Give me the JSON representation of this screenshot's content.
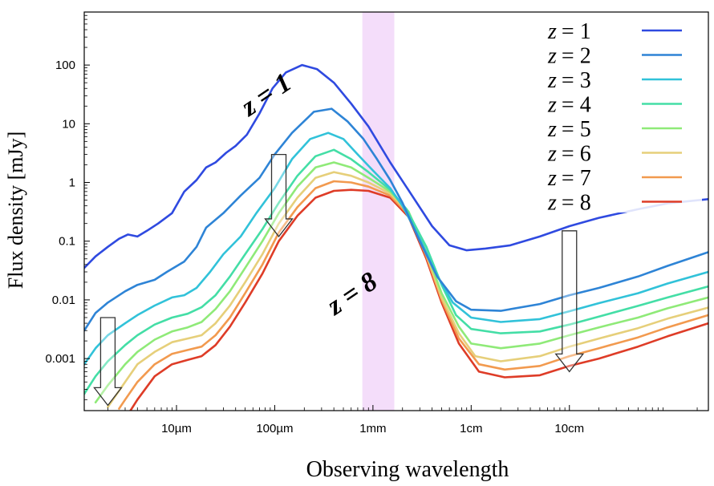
{
  "chart_data": {
    "type": "line",
    "title": "",
    "xlabel": "Observing wavelength",
    "ylabel": "Flux density [mJy]",
    "x_unit": "micrometre",
    "x_scale": "log",
    "y_scale": "log",
    "xlim": [
      1.15,
      2600000
    ],
    "ylim": [
      0.00013,
      800
    ],
    "x_ticks": [
      {
        "value": 10,
        "label": "10µm"
      },
      {
        "value": 100,
        "label": "100µm"
      },
      {
        "value": 1000,
        "label": "1mm"
      },
      {
        "value": 10000,
        "label": "1cm"
      },
      {
        "value": 100000,
        "label": "10cm"
      }
    ],
    "y_ticks": [
      {
        "value": 0.001,
        "label": "0.001"
      },
      {
        "value": 0.01,
        "label": "0.01"
      },
      {
        "value": 0.1,
        "label": "0.1"
      },
      {
        "value": 1,
        "label": "1"
      },
      {
        "value": 10,
        "label": "10"
      },
      {
        "value": 100,
        "label": "100"
      }
    ],
    "highlight_band": {
      "x_range": [
        780,
        1650
      ],
      "color": "#f4ddfa"
    },
    "grid": false,
    "legend_position": "top-right",
    "annotations": [
      {
        "text": "z = 1",
        "near": "upper curve, left of peak"
      },
      {
        "text": "z = 8",
        "near": "lower curve, below peak"
      }
    ],
    "arrows": [
      {
        "x": 2,
        "from": 0.005,
        "to": 0.00016
      },
      {
        "x": 110,
        "from": 3,
        "to": 0.12
      },
      {
        "x": 100000,
        "from": 0.15,
        "to": 0.0006
      }
    ],
    "series": [
      {
        "name": "z = 1",
        "z_label": "z",
        "eq": "= 1",
        "color": "#2f4ae0",
        "x": [
          1.15,
          1.5,
          2,
          2.6,
          3.2,
          4,
          5,
          6.5,
          9,
          12,
          16,
          20,
          25,
          32,
          40,
          52,
          70,
          95,
          130,
          190,
          270,
          400,
          600,
          900,
          1500,
          2500,
          4000,
          6000,
          9000,
          14000,
          25000,
          50000,
          100000,
          200000,
          500000,
          1000000,
          2600000
        ],
        "y": [
          0.035,
          0.055,
          0.08,
          0.11,
          0.13,
          0.12,
          0.15,
          0.2,
          0.3,
          0.7,
          1.1,
          1.8,
          2.2,
          3.2,
          4.2,
          6.5,
          15,
          40,
          75,
          100,
          85,
          50,
          22,
          9,
          2.2,
          0.6,
          0.18,
          0.085,
          0.07,
          0.075,
          0.085,
          0.12,
          0.18,
          0.25,
          0.35,
          0.44,
          0.52
        ]
      },
      {
        "name": "z = 2",
        "z_label": "z",
        "eq": "= 2",
        "color": "#2e84d6",
        "x": [
          1.15,
          1.5,
          2,
          3,
          4,
          6,
          8,
          12,
          16,
          20,
          30,
          45,
          70,
          100,
          150,
          250,
          380,
          550,
          800,
          1100,
          1500,
          2000,
          3000,
          4500,
          7000,
          10000,
          20000,
          50000,
          100000,
          200000,
          500000,
          1000000,
          2600000
        ],
        "y": [
          0.003,
          0.006,
          0.009,
          0.014,
          0.018,
          0.022,
          0.03,
          0.045,
          0.08,
          0.17,
          0.3,
          0.6,
          1.2,
          3,
          7,
          16,
          18,
          11,
          5.5,
          2.5,
          1.1,
          0.45,
          0.1,
          0.025,
          0.0095,
          0.0068,
          0.0065,
          0.0085,
          0.012,
          0.016,
          0.025,
          0.038,
          0.065
        ]
      },
      {
        "name": "z = 3",
        "z_label": "z",
        "eq": "= 3",
        "color": "#31c2d9",
        "x": [
          1.15,
          1.5,
          2,
          3,
          4,
          6,
          9,
          12,
          16,
          22,
          30,
          45,
          65,
          100,
          150,
          230,
          350,
          500,
          700,
          1000,
          1500,
          2000,
          3000,
          4500,
          6500,
          10000,
          20000,
          50000,
          100000,
          200000,
          500000,
          1000000,
          2600000
        ],
        "y": [
          0.0008,
          0.0015,
          0.0025,
          0.004,
          0.0055,
          0.008,
          0.011,
          0.012,
          0.016,
          0.03,
          0.06,
          0.12,
          0.3,
          0.8,
          2.5,
          5.5,
          7,
          5.5,
          3,
          1.6,
          0.8,
          0.4,
          0.11,
          0.026,
          0.009,
          0.005,
          0.0042,
          0.0047,
          0.0064,
          0.0088,
          0.013,
          0.019,
          0.03
        ]
      },
      {
        "name": "z = 4",
        "z_label": "z",
        "eq": "= 4",
        "color": "#44dea6",
        "x": [
          1.15,
          1.5,
          2,
          3,
          4,
          6,
          9,
          13,
          18,
          25,
          35,
          50,
          75,
          110,
          170,
          260,
          400,
          600,
          900,
          1500,
          2200,
          3500,
          5000,
          7000,
          10000,
          20000,
          50000,
          100000,
          200000,
          500000,
          1000000,
          2600000
        ],
        "y": [
          0.00025,
          0.0005,
          0.0009,
          0.0017,
          0.0025,
          0.0038,
          0.005,
          0.0058,
          0.0075,
          0.012,
          0.025,
          0.06,
          0.16,
          0.45,
          1.3,
          2.8,
          3.6,
          2.5,
          1.5,
          0.75,
          0.35,
          0.08,
          0.018,
          0.0055,
          0.0032,
          0.0027,
          0.0029,
          0.0038,
          0.0052,
          0.0079,
          0.011,
          0.017
        ]
      },
      {
        "name": "z = 5",
        "z_label": "z",
        "eq": "= 5",
        "color": "#8fea78",
        "x": [
          1.5,
          2,
          3,
          4,
          6,
          9,
          13,
          18,
          25,
          35,
          50,
          75,
          110,
          170,
          260,
          400,
          600,
          900,
          1500,
          2300,
          3500,
          5000,
          7500,
          10000,
          20000,
          50000,
          100000,
          200000,
          500000,
          1000000,
          2600000
        ],
        "y": [
          0.00018,
          0.00035,
          0.0008,
          0.0013,
          0.0021,
          0.0029,
          0.0034,
          0.0042,
          0.007,
          0.014,
          0.035,
          0.1,
          0.3,
          0.85,
          1.8,
          2.2,
          1.8,
          1.2,
          0.7,
          0.32,
          0.065,
          0.013,
          0.0035,
          0.0018,
          0.0015,
          0.0018,
          0.0025,
          0.0034,
          0.005,
          0.0072,
          0.011
        ]
      },
      {
        "name": "z = 6",
        "z_label": "z",
        "eq": "= 6",
        "color": "#e6cf7a",
        "x": [
          2,
          3,
          4,
          6,
          9,
          13,
          18,
          25,
          35,
          50,
          75,
          110,
          170,
          260,
          400,
          600,
          900,
          1500,
          2300,
          3500,
          5000,
          7500,
          11000,
          20000,
          50000,
          100000,
          200000,
          500000,
          1000000,
          2600000
        ],
        "y": [
          0.00015,
          0.0004,
          0.0008,
          0.0013,
          0.0019,
          0.0022,
          0.0025,
          0.004,
          0.008,
          0.02,
          0.06,
          0.2,
          0.55,
          1.2,
          1.5,
          1.3,
          1.0,
          0.65,
          0.3,
          0.06,
          0.011,
          0.0027,
          0.0011,
          0.0009,
          0.0011,
          0.0016,
          0.0022,
          0.0033,
          0.0048,
          0.0074
        ]
      },
      {
        "name": "z = 7",
        "z_label": "z",
        "eq": "= 7",
        "color": "#f29a4f",
        "x": [
          2.6,
          3,
          4,
          6,
          9,
          13,
          18,
          25,
          35,
          50,
          75,
          110,
          170,
          260,
          400,
          600,
          900,
          1500,
          2300,
          3500,
          5000,
          7500,
          12000,
          22000,
          50000,
          100000,
          200000,
          500000,
          1000000,
          2600000
        ],
        "y": [
          0.00014,
          0.0002,
          0.0004,
          0.0008,
          0.0012,
          0.0014,
          0.0016,
          0.0025,
          0.005,
          0.013,
          0.04,
          0.14,
          0.38,
          0.8,
          1.05,
          1.0,
          0.85,
          0.6,
          0.28,
          0.055,
          0.01,
          0.0022,
          0.0008,
          0.00065,
          0.00075,
          0.0011,
          0.0015,
          0.0023,
          0.0034,
          0.0055
        ]
      },
      {
        "name": "z = 8",
        "z_label": "z",
        "eq": "= 8",
        "color": "#de3c27",
        "x": [
          3.4,
          4,
          6,
          9,
          13,
          18,
          25,
          35,
          50,
          75,
          110,
          170,
          260,
          400,
          600,
          900,
          1500,
          2300,
          3500,
          5000,
          7500,
          12000,
          22000,
          50000,
          100000,
          200000,
          500000,
          1000000,
          2600000
        ],
        "y": [
          0.00013,
          0.0002,
          0.0005,
          0.0008,
          0.00095,
          0.0011,
          0.0017,
          0.0035,
          0.009,
          0.028,
          0.1,
          0.27,
          0.55,
          0.72,
          0.75,
          0.72,
          0.55,
          0.26,
          0.05,
          0.009,
          0.0018,
          0.0006,
          0.00048,
          0.00052,
          0.00075,
          0.001,
          0.0016,
          0.0024,
          0.004
        ]
      }
    ]
  }
}
